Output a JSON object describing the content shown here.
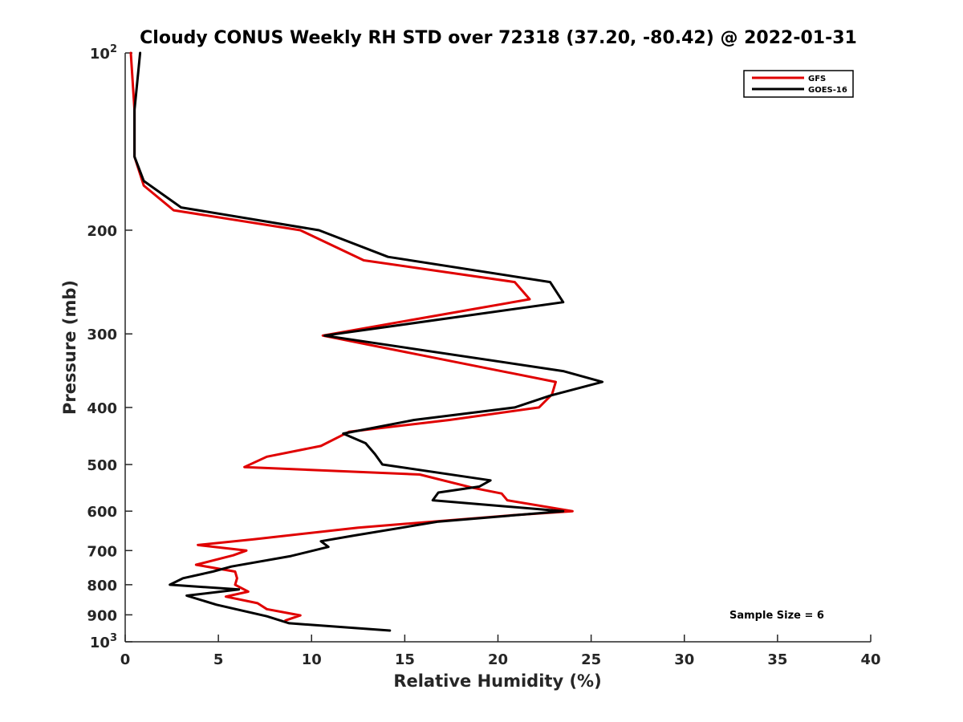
{
  "chart_data": {
    "type": "line",
    "title": "Cloudy CONUS Weekly RH STD over 72318 (37.20, -80.42) @ 2022-01-31",
    "xlabel": "Relative Humidity (%)",
    "ylabel": "Pressure (mb)",
    "xlim": [
      0,
      40
    ],
    "ylim": [
      100,
      1000
    ],
    "yscale": "log",
    "yreversed": true,
    "grid": false,
    "legend_position": "top-right",
    "xticks": [
      0,
      5,
      10,
      15,
      20,
      25,
      30,
      35,
      40
    ],
    "xtick_labels": [
      "0",
      "5",
      "10",
      "15",
      "20",
      "25",
      "30",
      "35",
      "40"
    ],
    "yticks": [
      {
        "value": 100,
        "label": "10",
        "sup": "2"
      },
      {
        "value": 200,
        "label": "200",
        "sup": ""
      },
      {
        "value": 300,
        "label": "300",
        "sup": ""
      },
      {
        "value": 400,
        "label": "400",
        "sup": ""
      },
      {
        "value": 500,
        "label": "500",
        "sup": ""
      },
      {
        "value": 600,
        "label": "600",
        "sup": ""
      },
      {
        "value": 700,
        "label": "700",
        "sup": ""
      },
      {
        "value": 800,
        "label": "800",
        "sup": ""
      },
      {
        "value": 900,
        "label": "900",
        "sup": ""
      },
      {
        "value": 1000,
        "label": "10",
        "sup": "3"
      }
    ],
    "annotation": "Sample Size = 6",
    "series": [
      {
        "name": "GFS",
        "color": "#e00000",
        "points": [
          [
            0.3,
            100
          ],
          [
            0.5,
            125
          ],
          [
            0.5,
            150
          ],
          [
            1.0,
            168
          ],
          [
            2.6,
            185
          ],
          [
            9.4,
            200
          ],
          [
            12.8,
            225
          ],
          [
            20.9,
            245
          ],
          [
            21.7,
            262
          ],
          [
            10.6,
            302
          ],
          [
            23.1,
            362
          ],
          [
            22.9,
            380
          ],
          [
            22.2,
            400
          ],
          [
            17.4,
            420
          ],
          [
            12.0,
            440
          ],
          [
            10.5,
            465
          ],
          [
            7.6,
            485
          ],
          [
            6.4,
            505
          ],
          [
            15.8,
            520
          ],
          [
            18.7,
            548
          ],
          [
            20.2,
            560
          ],
          [
            20.5,
            575
          ],
          [
            24.0,
            600
          ],
          [
            20.7,
            610
          ],
          [
            12.5,
            640
          ],
          [
            6.9,
            670
          ],
          [
            3.9,
            685
          ],
          [
            6.5,
            700
          ],
          [
            5.8,
            713
          ],
          [
            3.8,
            740
          ],
          [
            5.9,
            760
          ],
          [
            6.0,
            780
          ],
          [
            5.9,
            800
          ],
          [
            6.6,
            822
          ],
          [
            5.4,
            838
          ],
          [
            7.1,
            860
          ],
          [
            7.6,
            880
          ],
          [
            9.4,
            902
          ],
          [
            8.6,
            920
          ]
        ]
      },
      {
        "name": "GOES-16",
        "color": "#000000",
        "points": [
          [
            0.8,
            100
          ],
          [
            0.5,
            125
          ],
          [
            0.5,
            150
          ],
          [
            1.0,
            165
          ],
          [
            3.0,
            183
          ],
          [
            10.4,
            200
          ],
          [
            14.1,
            222
          ],
          [
            22.8,
            245
          ],
          [
            23.5,
            265
          ],
          [
            10.7,
            302
          ],
          [
            23.5,
            347
          ],
          [
            25.6,
            362
          ],
          [
            22.8,
            382
          ],
          [
            20.9,
            400
          ],
          [
            15.5,
            420
          ],
          [
            11.7,
            443
          ],
          [
            12.9,
            460
          ],
          [
            13.4,
            480
          ],
          [
            13.8,
            500
          ],
          [
            19.6,
            532
          ],
          [
            19.0,
            545
          ],
          [
            16.8,
            558
          ],
          [
            16.5,
            575
          ],
          [
            23.5,
            600
          ],
          [
            16.8,
            625
          ],
          [
            12.3,
            660
          ],
          [
            10.5,
            675
          ],
          [
            10.9,
            690
          ],
          [
            8.9,
            715
          ],
          [
            5.7,
            745
          ],
          [
            4.7,
            760
          ],
          [
            3.1,
            780
          ],
          [
            2.4,
            800
          ],
          [
            6.1,
            815
          ],
          [
            3.3,
            835
          ],
          [
            4.9,
            865
          ],
          [
            7.6,
            905
          ],
          [
            8.8,
            930
          ],
          [
            14.2,
            957
          ]
        ]
      }
    ]
  }
}
